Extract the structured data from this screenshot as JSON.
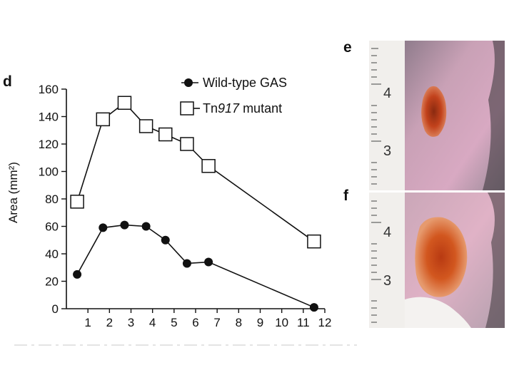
{
  "figure": {
    "panels": [
      {
        "letter": "d"
      },
      {
        "letter": "e",
        "ruler_numbers": [
          "4",
          "3"
        ]
      },
      {
        "letter": "f",
        "ruler_numbers": [
          "4",
          "3"
        ]
      }
    ]
  },
  "chart_data": {
    "type": "line",
    "title": "",
    "xlabel": "",
    "ylabel": "Area (mm²)",
    "xlim": [
      0,
      12
    ],
    "ylim": [
      0,
      160
    ],
    "xticks": [
      1,
      2,
      3,
      4,
      5,
      6,
      7,
      8,
      9,
      10,
      11,
      12
    ],
    "yticks": [
      0,
      20,
      40,
      60,
      80,
      100,
      120,
      140,
      160
    ],
    "grid": false,
    "legend_position": "top-right",
    "series": [
      {
        "name": "Wild-type GAS",
        "name_prefix": "",
        "name_italic": "",
        "name_suffix": "",
        "marker": "filled-circle",
        "color": "#111111",
        "x": [
          0.5,
          1.7,
          2.7,
          3.7,
          4.6,
          5.6,
          6.6,
          11.5
        ],
        "y": [
          25,
          59,
          61,
          60,
          50,
          33,
          34,
          1
        ]
      },
      {
        "name": "Tn917 mutant",
        "name_prefix": "Tn",
        "name_italic": "917",
        "name_suffix": " mutant",
        "marker": "open-square",
        "color": "#111111",
        "x": [
          0.5,
          1.7,
          2.7,
          3.7,
          4.6,
          5.6,
          6.6,
          11.5
        ],
        "y": [
          78,
          138,
          150,
          133,
          127,
          120,
          104,
          49
        ]
      }
    ]
  }
}
